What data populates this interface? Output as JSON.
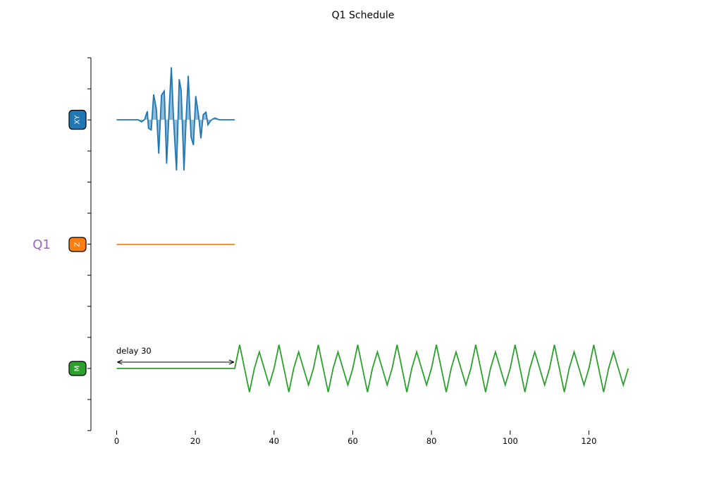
{
  "chart_data": {
    "type": "line",
    "title": "Q1 Schedule",
    "qubit_label": "Q1",
    "xlim": [
      -6.5,
      137.5
    ],
    "x_ticks": [
      0,
      20,
      40,
      60,
      80,
      100,
      120
    ],
    "x_tick_labels": [
      "0",
      "20",
      "40",
      "60",
      "80",
      "100",
      "120"
    ],
    "annotation": {
      "text": "delay 30",
      "x_start": 0,
      "x_end": 30
    },
    "channels": [
      {
        "id": "xy",
        "label": "XY",
        "color": "#1f77b4",
        "fill": true,
        "x": [
          0,
          5.5,
          6.3,
          7.1,
          7.8,
          8.1,
          8.8,
          9.4,
          10.1,
          10.7,
          11.4,
          12.1,
          12.7,
          13.4,
          13.9,
          14.5,
          15.2,
          15.9,
          16.4,
          17.1,
          17.7,
          18.2,
          18.9,
          19.5,
          20.1,
          20.8,
          21.4,
          22.0,
          22.7,
          23.2,
          23.9,
          24.5,
          25.0,
          26.0,
          30
        ],
        "y": [
          0,
          0,
          -0.12,
          0.01,
          0.5,
          -0.5,
          -0.6,
          1.5,
          0.6,
          -2.0,
          1.45,
          1.7,
          -2.6,
          0.9,
          3.1,
          -0.2,
          -3.0,
          2.4,
          1.7,
          -3.0,
          0.3,
          2.6,
          -1.0,
          -1.5,
          1.4,
          0.3,
          -1.1,
          0.3,
          0.45,
          -0.3,
          -0.05,
          0.05,
          0.1,
          0,
          0
        ]
      },
      {
        "id": "z",
        "label": "Z",
        "color": "#ff7f0e",
        "fill": false,
        "x": [
          0,
          30
        ],
        "y": [
          0,
          0
        ]
      },
      {
        "id": "m",
        "label": "M",
        "color": "#2ca02c",
        "fill": false,
        "flat_until": 30,
        "end": 130,
        "period": 5,
        "amplitude": 1.4
      }
    ]
  }
}
